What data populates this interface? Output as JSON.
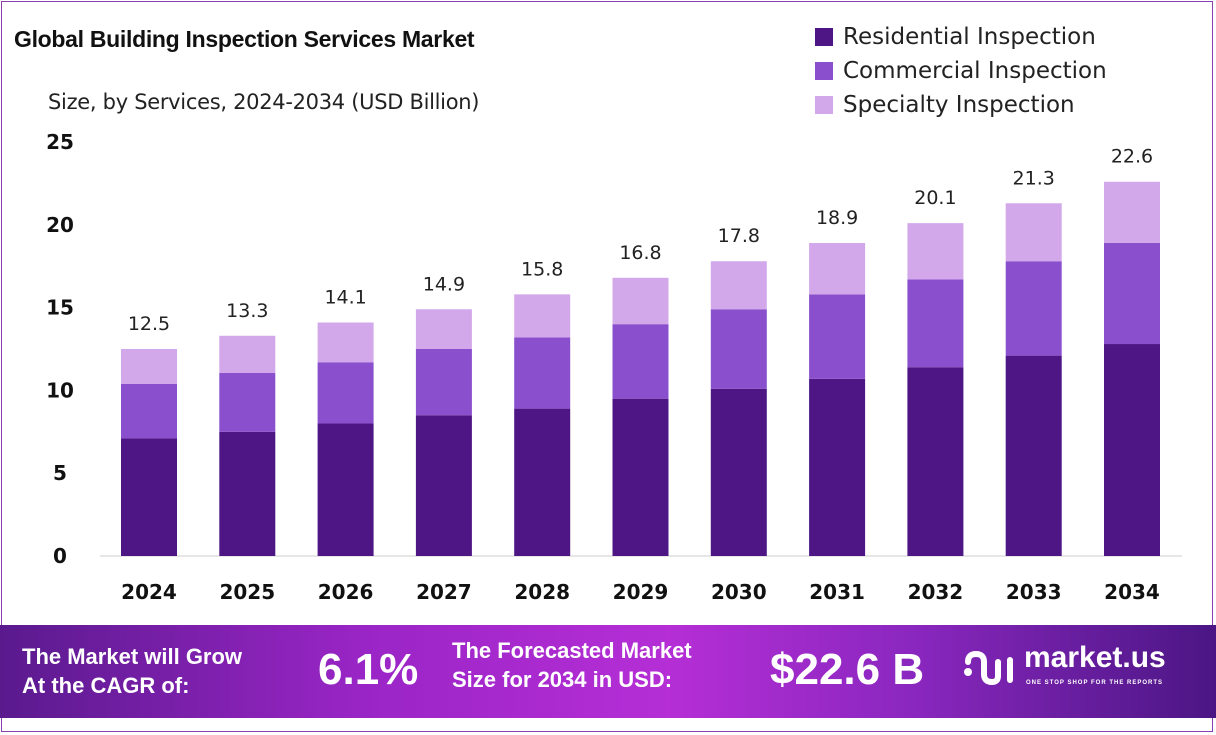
{
  "chart_data": {
    "type": "bar",
    "stacked": true,
    "title": "Global Building Inspection Services Market",
    "subtitle": "Size, by Services, 2024-2034 (USD Billion)",
    "categories": [
      "2024",
      "2025",
      "2026",
      "2027",
      "2028",
      "2029",
      "2030",
      "2031",
      "2032",
      "2033",
      "2034"
    ],
    "series": [
      {
        "name": "Residential Inspection",
        "color": "#4e1585",
        "values": [
          7.1,
          7.5,
          8.0,
          8.5,
          8.9,
          9.5,
          10.1,
          10.7,
          11.4,
          12.1,
          12.8
        ]
      },
      {
        "name": "Commercial Inspection",
        "color": "#8a4fcc",
        "values": [
          3.3,
          3.55,
          3.7,
          4.0,
          4.3,
          4.5,
          4.8,
          5.1,
          5.3,
          5.7,
          6.1
        ]
      },
      {
        "name": "Specialty Inspection",
        "color": "#d3a8ea",
        "values": [
          2.1,
          2.25,
          2.4,
          2.4,
          2.6,
          2.8,
          2.9,
          3.1,
          3.4,
          3.5,
          3.7
        ]
      }
    ],
    "totals": [
      "12.5",
      "13.3",
      "14.1",
      "14.9",
      "15.8",
      "16.8",
      "17.8",
      "18.9",
      "20.1",
      "21.3",
      "22.6"
    ],
    "yticks": [
      "0",
      "5",
      "10",
      "15",
      "20",
      "25"
    ],
    "ylim": [
      0,
      25
    ],
    "grid": false,
    "legend": "top-right"
  },
  "footer": {
    "cagr_label_1": "The Market will Grow",
    "cagr_label_2": "At the CAGR of:",
    "cagr_value": "6.1%",
    "forecast_label_1": "The Forecasted Market",
    "forecast_label_2": "Size for 2034 in USD:",
    "forecast_value": "$22.6 B",
    "logo_text": "market.us",
    "logo_tagline": "ONE STOP SHOP FOR THE REPORTS"
  }
}
